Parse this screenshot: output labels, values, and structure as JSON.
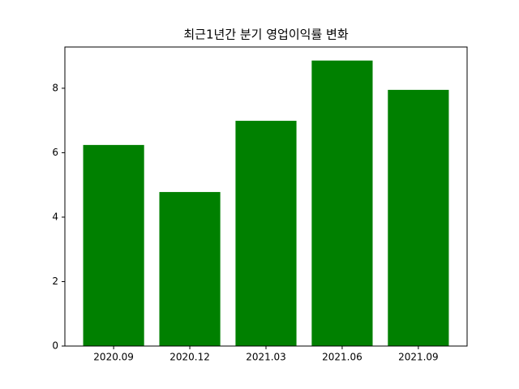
{
  "chart_data": {
    "type": "bar",
    "title": "최근1년간 분기 영업이익률 변화",
    "categories": [
      "2020.09",
      "2020.12",
      "2021.03",
      "2021.06",
      "2021.09"
    ],
    "values": [
      6.24,
      4.78,
      6.99,
      8.86,
      7.95
    ],
    "color": "#008000",
    "ylim": [
      0,
      9.28
    ],
    "yticks": [
      0,
      2,
      4,
      6,
      8
    ],
    "grid": false
  }
}
